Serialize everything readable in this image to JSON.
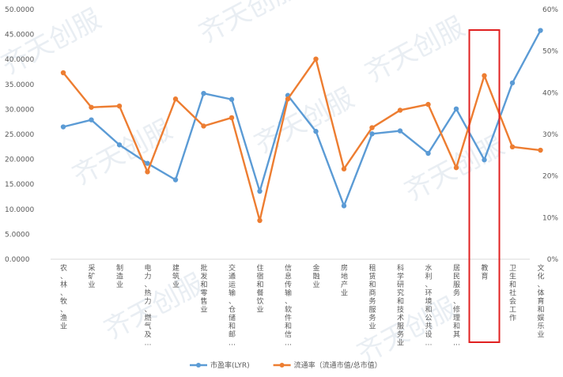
{
  "chart_data": {
    "type": "line",
    "categories": [
      "农、林、牧、渔业",
      "采矿业",
      "制造业",
      "电力、热力、燃气及…",
      "建筑业",
      "批发和零售业",
      "交通运输、仓储和邮…",
      "住宿和餐饮业",
      "信息传输、软件和信…",
      "金融业",
      "房地产业",
      "租赁和商务服务业",
      "科学研究和技术服务业",
      "水利、环境和公共设…",
      "居民服务、修理和其…",
      "教育",
      "卫生和社会工作",
      "文化、体育和娱乐业"
    ],
    "series": [
      {
        "name": "市盈率(LYR)",
        "axis": "left",
        "color": "#5b9bd5",
        "values": [
          26.5,
          27.9,
          22.9,
          19.2,
          15.9,
          33.2,
          32.0,
          13.6,
          32.8,
          25.6,
          10.7,
          25.1,
          25.7,
          21.2,
          30.1,
          19.9,
          35.3,
          45.8
        ]
      },
      {
        "name": "流通率（流通市值/总市值）",
        "axis": "right",
        "color": "#ed7d31",
        "values": [
          0.448,
          0.365,
          0.368,
          0.21,
          0.385,
          0.32,
          0.34,
          0.093,
          0.385,
          0.481,
          0.217,
          0.316,
          0.358,
          0.372,
          0.22,
          0.441,
          0.27,
          0.262
        ]
      }
    ],
    "left_axis": {
      "ylim": [
        0,
        50
      ],
      "ticks": [
        "0.0000",
        "5.0000",
        "10.0000",
        "15.0000",
        "20.0000",
        "25.0000",
        "30.0000",
        "35.0000",
        "40.0000",
        "45.0000",
        "50.0000"
      ]
    },
    "right_axis": {
      "ylim": [
        0,
        0.6
      ],
      "ticks": [
        "0%",
        "10%",
        "20%",
        "30%",
        "40%",
        "50%",
        "60%"
      ]
    },
    "grid": false,
    "legend": "bottom-center",
    "highlight": {
      "category_index": 15,
      "color": "#e02020"
    },
    "watermark": "齐天创服"
  }
}
